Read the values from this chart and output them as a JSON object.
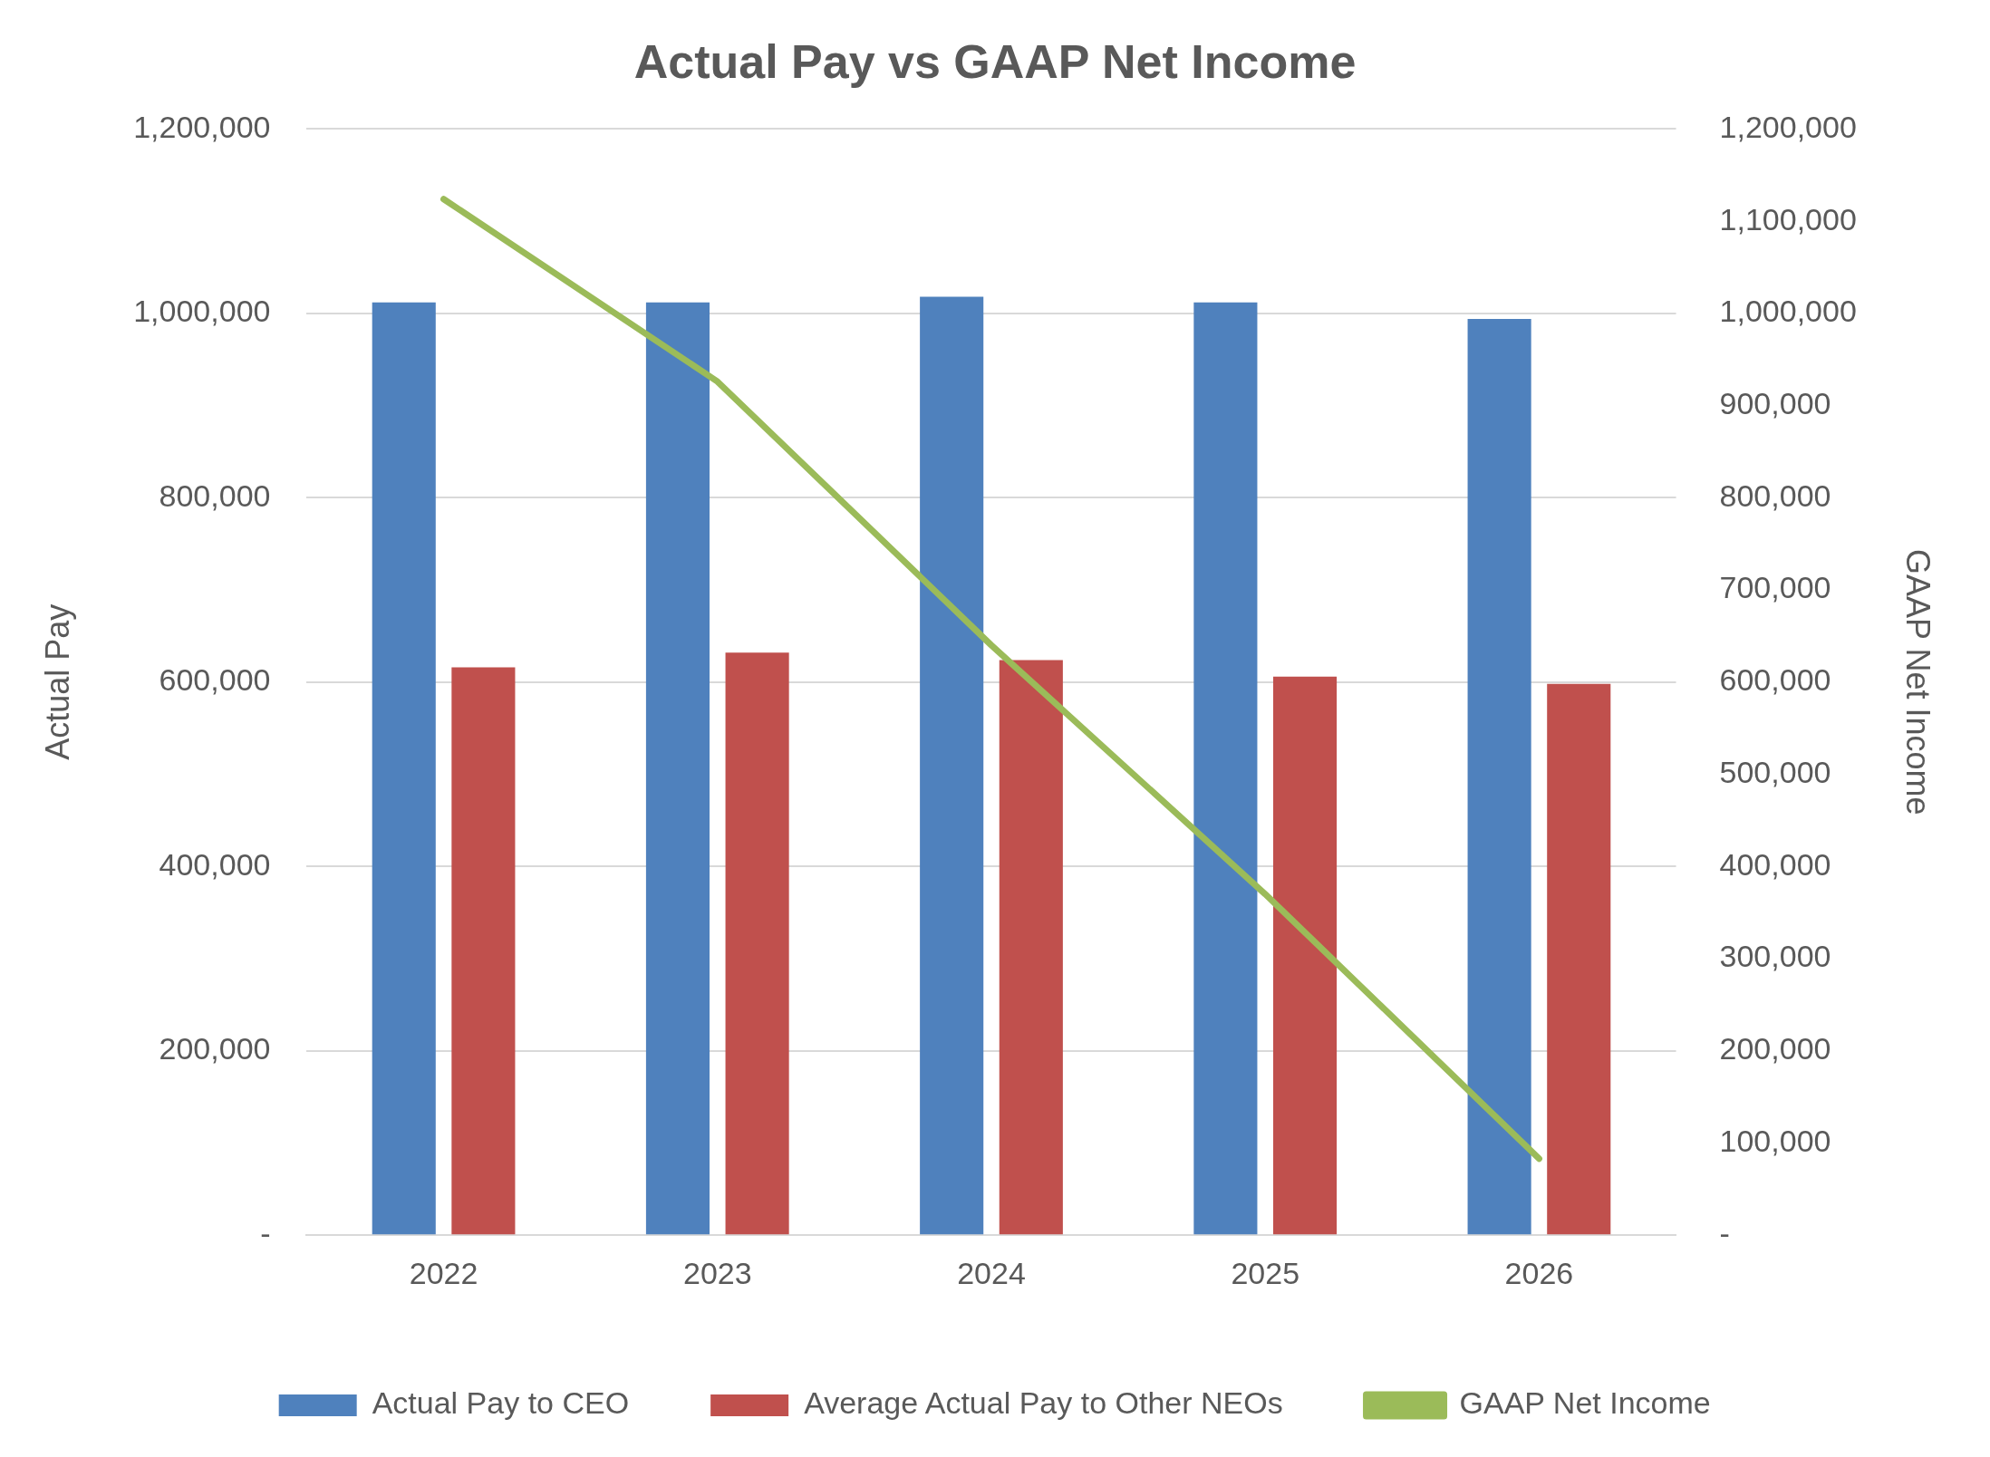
{
  "chart_data": {
    "type": "bar",
    "title": "Actual Pay vs GAAP Net Income",
    "ylabel": "Actual Pay",
    "y2label": "GAAP Net Income",
    "categories": [
      "2022",
      "2023",
      "2024",
      "2025",
      "2026"
    ],
    "series": [
      {
        "name": "Actual Pay to CEO",
        "color": "#4f81bd",
        "values": [
          1012000,
          1012000,
          1018000,
          1012000,
          994000
        ]
      },
      {
        "name": "Average Actual Pay to Other NEOs",
        "color": "#c0504d",
        "values": [
          616000,
          632000,
          624000,
          606000,
          598000
        ]
      },
      {
        "name": "GAAP Net Income",
        "type": "line",
        "axis": "y2",
        "color": "#9bbb59",
        "values": [
          1124000,
          926000,
          640000,
          370000,
          83000
        ]
      }
    ],
    "ylim": [
      0,
      1200000
    ],
    "yticks": [
      {
        "value": 0,
        "label": "-"
      },
      {
        "value": 200000,
        "label": "200,000"
      },
      {
        "value": 400000,
        "label": "400,000"
      },
      {
        "value": 600000,
        "label": "600,000"
      },
      {
        "value": 800000,
        "label": "800,000"
      },
      {
        "value": 1000000,
        "label": "1,000,000"
      },
      {
        "value": 1200000,
        "label": "1,200,000"
      }
    ],
    "y2lim": [
      0,
      1200000
    ],
    "y2ticks": [
      {
        "value": 0,
        "label": "-"
      },
      {
        "value": 100000,
        "label": "100,000"
      },
      {
        "value": 200000,
        "label": "200,000"
      },
      {
        "value": 300000,
        "label": "300,000"
      },
      {
        "value": 400000,
        "label": "400,000"
      },
      {
        "value": 500000,
        "label": "500,000"
      },
      {
        "value": 600000,
        "label": "600,000"
      },
      {
        "value": 700000,
        "label": "700,000"
      },
      {
        "value": 800000,
        "label": "800,000"
      },
      {
        "value": 900000,
        "label": "900,000"
      },
      {
        "value": 1000000,
        "label": "1,000,000"
      },
      {
        "value": 1100000,
        "label": "1,100,000"
      },
      {
        "value": 1200000,
        "label": "1,200,000"
      }
    ],
    "grid": "y",
    "legend": "bottom",
    "marker": "none"
  }
}
